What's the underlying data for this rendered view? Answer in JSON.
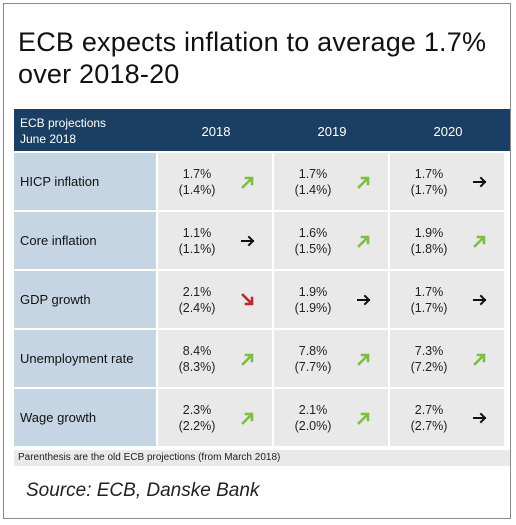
{
  "title": "ECB expects inflation to average 1.7% over 2018-20",
  "header": {
    "label_line1": "ECB projections",
    "label_line2": "June 2018",
    "years": [
      "2018",
      "2019",
      "2020"
    ]
  },
  "colors": {
    "header_bg": "#1b3f62",
    "row_label_bg": "#c5d5e3",
    "cell_bg": "#e9e9e9",
    "arrow_up": "#7bbf3f",
    "arrow_down": "#c0262d",
    "arrow_flat": "#111111"
  },
  "rows": [
    {
      "name": "HICP inflation",
      "cells": [
        {
          "new": "1.7%",
          "old": "(1.4%)",
          "arrow": "up"
        },
        {
          "new": "1.7%",
          "old": "(1.4%)",
          "arrow": "up"
        },
        {
          "new": "1.7%",
          "old": "(1.7%)",
          "arrow": "flat"
        }
      ]
    },
    {
      "name": "Core inflation",
      "cells": [
        {
          "new": "1.1%",
          "old": "(1.1%)",
          "arrow": "flat"
        },
        {
          "new": "1.6%",
          "old": "(1.5%)",
          "arrow": "up"
        },
        {
          "new": "1.9%",
          "old": "(1.8%)",
          "arrow": "up"
        }
      ]
    },
    {
      "name": "GDP growth",
      "cells": [
        {
          "new": "2.1%",
          "old": "(2.4%)",
          "arrow": "down"
        },
        {
          "new": "1.9%",
          "old": "(1.9%)",
          "arrow": "flat"
        },
        {
          "new": "1.7%",
          "old": "(1.7%)",
          "arrow": "flat"
        }
      ]
    },
    {
      "name": "Unemployment rate",
      "cells": [
        {
          "new": "8.4%",
          "old": "(8.3%)",
          "arrow": "up"
        },
        {
          "new": "7.8%",
          "old": "(7.7%)",
          "arrow": "up"
        },
        {
          "new": "7.3%",
          "old": "(7.2%)",
          "arrow": "up"
        }
      ]
    },
    {
      "name": "Wage growth",
      "cells": [
        {
          "new": "2.3%",
          "old": "(2.2%)",
          "arrow": "up"
        },
        {
          "new": "2.1%",
          "old": "(2.0%)",
          "arrow": "up"
        },
        {
          "new": "2.7%",
          "old": "(2.7%)",
          "arrow": "flat"
        }
      ]
    }
  ],
  "note": "Parenthesis are the old ECB projections (from March 2018)",
  "source": "Source: ECB, Danske Bank"
}
